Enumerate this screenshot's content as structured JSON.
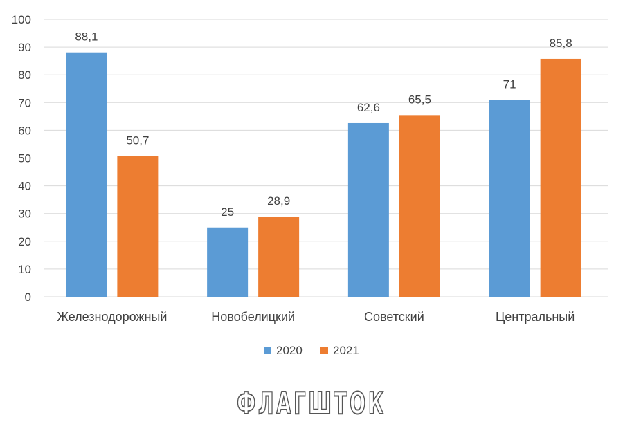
{
  "watermark_text": "ФЛАГШТОК",
  "colors": {
    "series_2020": "#5B9BD5",
    "series_2021": "#ED7D31",
    "grid": "#D9D9D9",
    "text": "#404040"
  },
  "chart_data": {
    "type": "bar",
    "title": "",
    "xlabel": "",
    "ylabel": "",
    "ylim": [
      0,
      100
    ],
    "yticks": [
      0,
      10,
      20,
      30,
      40,
      50,
      60,
      70,
      80,
      90,
      100
    ],
    "grid": true,
    "legend_position": "bottom",
    "categories": [
      "Железнодорожный",
      "Новобелицкий",
      "Советский",
      "Центральный"
    ],
    "series": [
      {
        "name": "2020",
        "values": [
          88.1,
          25,
          62.6,
          71
        ],
        "labels": [
          "88,1",
          "25",
          "62,6",
          "71"
        ]
      },
      {
        "name": "2021",
        "values": [
          50.7,
          28.9,
          65.5,
          85.8
        ],
        "labels": [
          "50,7",
          "28,9",
          "65,5",
          "85,8"
        ]
      }
    ]
  }
}
